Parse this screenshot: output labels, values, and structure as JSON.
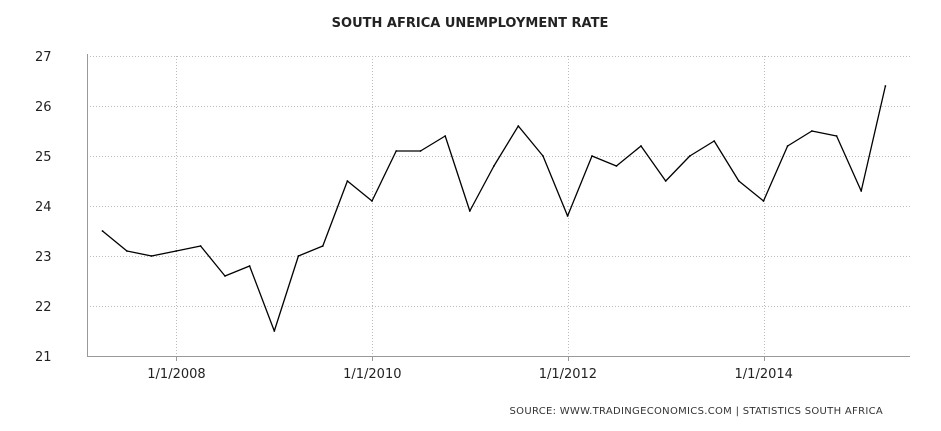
{
  "chart_data": {
    "type": "line",
    "title": "SOUTH AFRICA UNEMPLOYMENT RATE",
    "source": "SOURCE:  WWW.TRADINGECONOMICS.COM  |  STATISTICS  SOUTH  AFRICA",
    "xlabel": "",
    "ylabel": "",
    "ylim": [
      21,
      27
    ],
    "yticks": [
      21,
      22,
      23,
      24,
      25,
      26,
      27
    ],
    "xticks": [
      "1/1/2008",
      "1/1/2010",
      "1/1/2012",
      "1/1/2014"
    ],
    "xlim": [
      "2007-02-01",
      "2015-07-01"
    ],
    "grid": true,
    "legend": "none",
    "line_color": "#000000",
    "series": [
      {
        "x": [
          "2007-03-31",
          "2007-06-30",
          "2007-09-30",
          "2007-12-31",
          "2008-03-31",
          "2008-06-30",
          "2008-09-30",
          "2008-12-31",
          "2009-03-31",
          "2009-06-30",
          "2009-09-30",
          "2009-12-31",
          "2010-03-31",
          "2010-06-30",
          "2010-09-30",
          "2010-12-31",
          "2011-03-31",
          "2011-06-30",
          "2011-09-30",
          "2011-12-31",
          "2012-03-31",
          "2012-06-30",
          "2012-09-30",
          "2012-12-31",
          "2013-03-31",
          "2013-06-30",
          "2013-09-30",
          "2013-12-31",
          "2014-03-31",
          "2014-06-30",
          "2014-09-30",
          "2014-12-31",
          "2015-03-31"
        ],
        "values": [
          23.5,
          23.1,
          23.0,
          23.1,
          23.2,
          22.6,
          22.8,
          21.5,
          23.0,
          23.2,
          24.5,
          24.1,
          25.1,
          25.1,
          25.4,
          23.9,
          24.8,
          25.6,
          25.0,
          23.8,
          25.0,
          24.8,
          25.2,
          24.5,
          25.0,
          25.3,
          24.5,
          24.1,
          25.2,
          25.5,
          25.4,
          24.3,
          26.4
        ]
      }
    ]
  }
}
